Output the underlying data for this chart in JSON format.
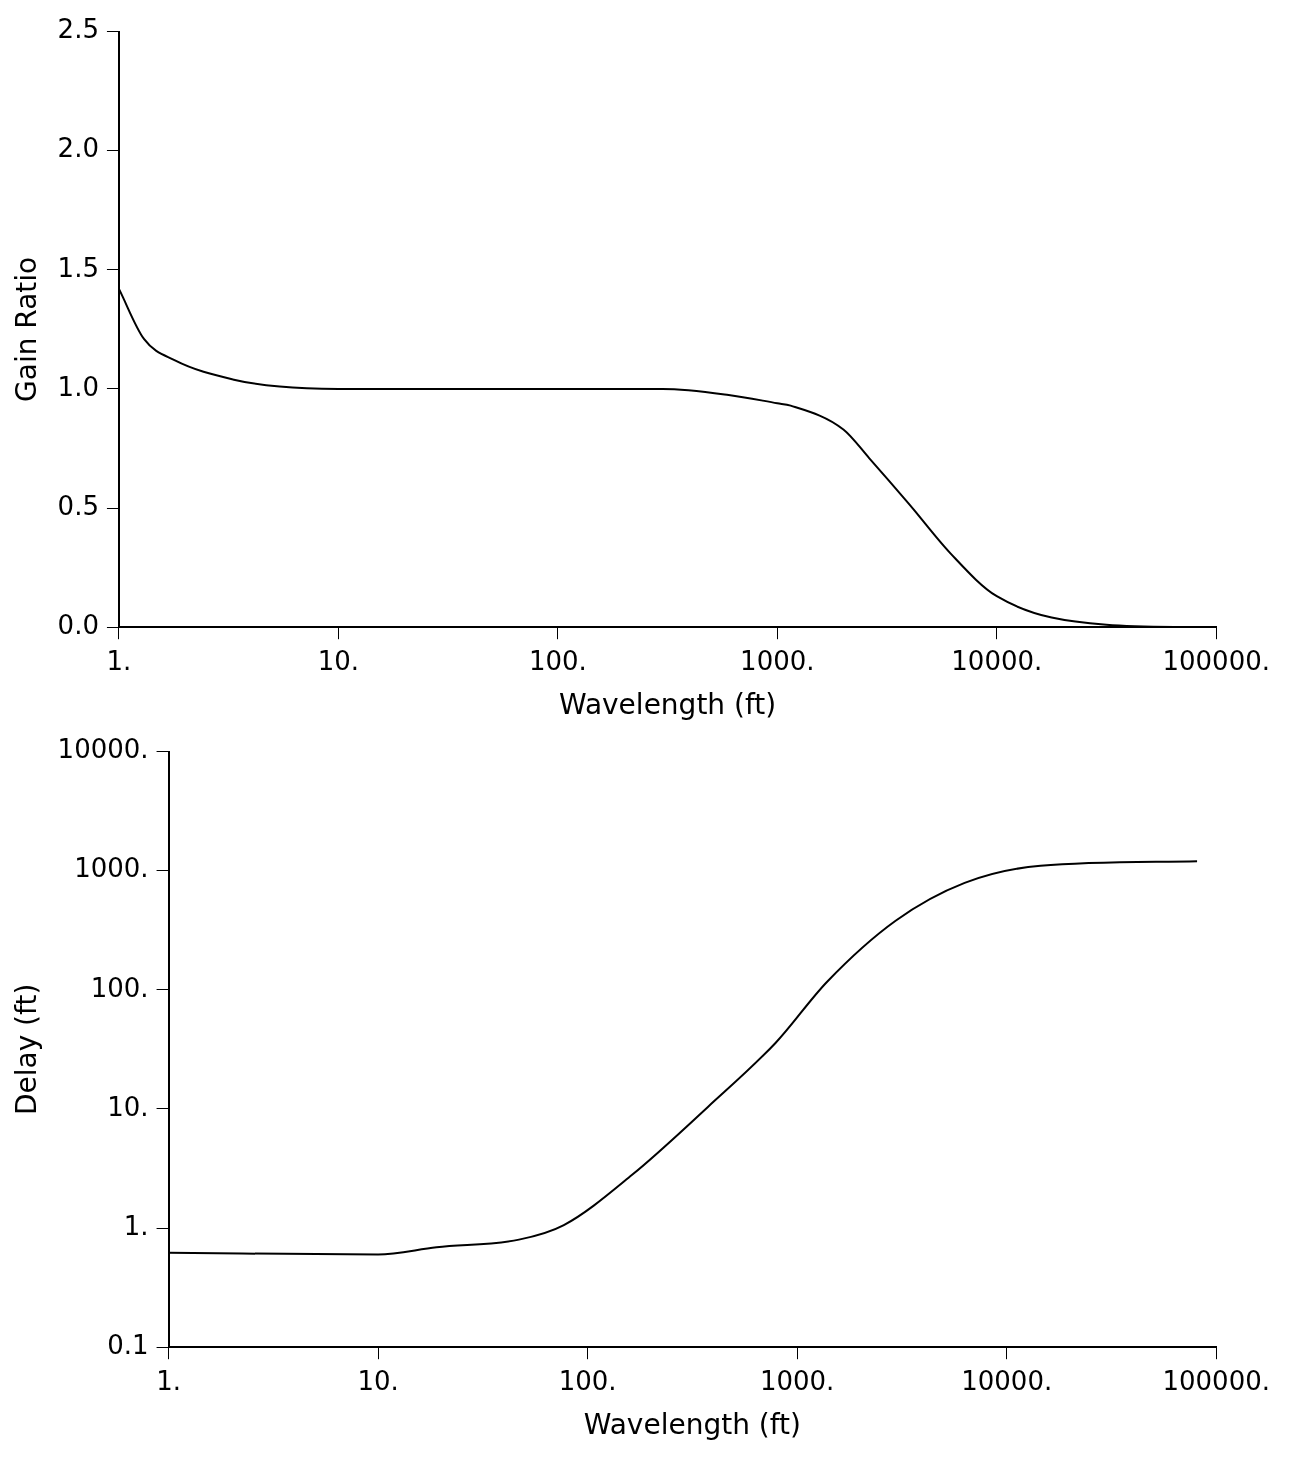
{
  "chart_data": [
    {
      "type": "line",
      "xlabel": "Wavelength (ft)",
      "ylabel": "Gain Ratio",
      "log": "x",
      "grid": false,
      "legend": false,
      "marker": "none",
      "line_style": "solid",
      "xlim": [
        1,
        100000
      ],
      "xticks": [
        {
          "value": 1,
          "label": "1."
        },
        {
          "value": 10,
          "label": "10."
        },
        {
          "value": 100,
          "label": "100."
        },
        {
          "value": 1000,
          "label": "1000."
        },
        {
          "value": 10000,
          "label": "10000."
        },
        {
          "value": 100000,
          "label": "100000."
        }
      ],
      "ylim": [
        0,
        2.5
      ],
      "yticks": [
        {
          "value": 0,
          "label": "0.0"
        },
        0.5,
        {
          "value": 1,
          "label": "1.0"
        },
        1.5,
        {
          "value": 2,
          "label": "2.0"
        },
        2.5
      ],
      "series": [
        {
          "color": "#000000",
          "x": [
            1,
            1.3,
            1.8,
            3.3,
            5.4,
            10,
            100,
            300,
            600,
            1000,
            1150,
            2000,
            2620,
            3960,
            6150,
            10000,
            31600,
            80000
          ],
          "values": [
            1.42,
            1.21,
            1.12,
            1.04,
            1.01,
            1.0,
            1.0,
            1.0,
            0.975,
            0.94,
            0.93,
            0.83,
            0.71,
            0.52,
            0.31,
            0.13,
            0.01,
            0.0
          ]
        }
      ]
    },
    {
      "type": "line",
      "xlabel": "Wavelength (ft)",
      "ylabel": "Delay (ft)",
      "log": "xy",
      "grid": false,
      "legend": false,
      "marker": "none",
      "line_style": "solid",
      "xlim": [
        1,
        100000
      ],
      "xticks": [
        {
          "value": 1,
          "label": "1."
        },
        {
          "value": 10,
          "label": "10."
        },
        {
          "value": 100,
          "label": "100."
        },
        {
          "value": 1000,
          "label": "1000."
        },
        {
          "value": 10000,
          "label": "10000."
        },
        {
          "value": 100000,
          "label": "100000."
        }
      ],
      "ylim": [
        0.1,
        10000
      ],
      "yticks": [
        0.1,
        {
          "value": 1,
          "label": "1."
        },
        {
          "value": 10,
          "label": "10."
        },
        {
          "value": 100,
          "label": "100."
        },
        {
          "value": 1000,
          "label": "1000."
        },
        {
          "value": 10000,
          "label": "10000."
        }
      ],
      "series": [
        {
          "color": "#000000",
          "x": [
            1,
            10,
            19,
            47,
            77,
            163,
            375,
            790,
            1390,
            2950,
            6300,
            14500,
            81000
          ],
          "values": [
            0.62,
            0.6,
            0.69,
            0.8,
            1.06,
            2.8,
            10.4,
            36,
            117,
            380,
            790,
            1100,
            1200
          ]
        }
      ]
    }
  ]
}
